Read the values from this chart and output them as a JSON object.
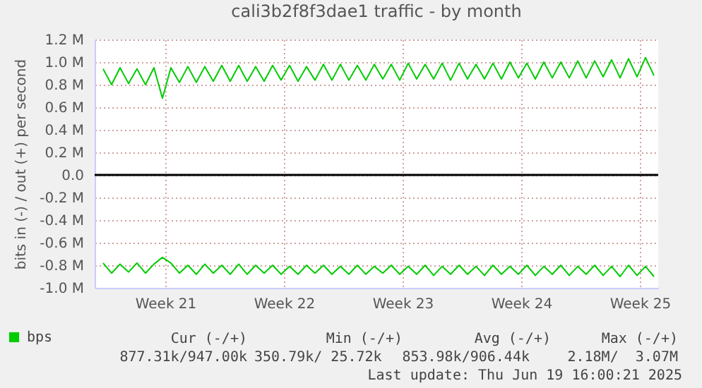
{
  "chart_data": {
    "type": "line",
    "title": "cali3b2f8f3dae1 traffic - by month",
    "ylabel": "bits in (-) / out (+) per second",
    "x": [
      "2025-05-18T20:00",
      "2025-05-19T08:00",
      "2025-05-19T20:00",
      "2025-05-20T08:00",
      "2025-05-20T20:00",
      "2025-05-21T08:00",
      "2025-05-21T20:00",
      "2025-05-22T08:00",
      "2025-05-22T20:00",
      "2025-05-23T08:00",
      "2025-05-23T20:00",
      "2025-05-24T08:00",
      "2025-05-24T20:00",
      "2025-05-25T08:00",
      "2025-05-25T20:00",
      "2025-05-26T08:00",
      "2025-05-26T20:00",
      "2025-05-27T08:00",
      "2025-05-27T20:00",
      "2025-05-28T08:00",
      "2025-05-28T20:00",
      "2025-05-29T08:00",
      "2025-05-29T20:00",
      "2025-05-30T08:00",
      "2025-05-30T20:00",
      "2025-05-31T08:00",
      "2025-05-31T20:00",
      "2025-06-01T08:00",
      "2025-06-01T20:00",
      "2025-06-02T08:00",
      "2025-06-02T20:00",
      "2025-06-03T08:00",
      "2025-06-03T20:00",
      "2025-06-04T08:00",
      "2025-06-04T20:00",
      "2025-06-05T08:00",
      "2025-06-05T20:00",
      "2025-06-06T08:00",
      "2025-06-06T20:00",
      "2025-06-07T08:00",
      "2025-06-07T20:00",
      "2025-06-08T08:00",
      "2025-06-08T20:00",
      "2025-06-09T08:00",
      "2025-06-09T20:00",
      "2025-06-10T08:00",
      "2025-06-10T20:00",
      "2025-06-11T08:00",
      "2025-06-11T20:00",
      "2025-06-12T08:00",
      "2025-06-12T20:00",
      "2025-06-13T08:00",
      "2025-06-13T20:00",
      "2025-06-14T08:00",
      "2025-06-14T20:00",
      "2025-06-15T08:00",
      "2025-06-15T20:00",
      "2025-06-16T08:00",
      "2025-06-16T20:00",
      "2025-06-17T08:00",
      "2025-06-17T20:00",
      "2025-06-18T08:00",
      "2025-06-18T20:00",
      "2025-06-19T08:00",
      "2025-06-19T20:00",
      "2025-06-20T08:00"
    ],
    "series": [
      {
        "name": "bps",
        "color": "#00cc00",
        "values": [
          0.94,
          0.8,
          0.95,
          0.81,
          0.94,
          0.8,
          0.95,
          0.68,
          0.95,
          0.82,
          0.96,
          0.82,
          0.96,
          0.83,
          0.97,
          0.83,
          0.97,
          0.83,
          0.96,
          0.83,
          0.97,
          0.84,
          0.97,
          0.83,
          0.96,
          0.84,
          0.98,
          0.84,
          0.98,
          0.84,
          0.97,
          0.84,
          0.98,
          0.85,
          0.98,
          0.84,
          0.99,
          0.85,
          0.98,
          0.85,
          0.99,
          0.84,
          0.99,
          0.85,
          0.98,
          0.85,
          0.99,
          0.85,
          1.0,
          0.86,
          0.99,
          0.85,
          1.0,
          0.86,
          1.0,
          0.86,
          1.01,
          0.86,
          1.01,
          0.87,
          1.02,
          0.86,
          1.03,
          0.87,
          1.04,
          0.88
        ]
      },
      {
        "color": "#00cc00",
        "values": [
          -0.78,
          -0.87,
          -0.79,
          -0.86,
          -0.78,
          -0.87,
          -0.79,
          -0.73,
          -0.78,
          -0.87,
          -0.8,
          -0.88,
          -0.79,
          -0.87,
          -0.8,
          -0.88,
          -0.79,
          -0.88,
          -0.8,
          -0.87,
          -0.8,
          -0.88,
          -0.81,
          -0.88,
          -0.8,
          -0.87,
          -0.8,
          -0.88,
          -0.81,
          -0.88,
          -0.8,
          -0.88,
          -0.81,
          -0.87,
          -0.8,
          -0.88,
          -0.81,
          -0.88,
          -0.8,
          -0.89,
          -0.81,
          -0.88,
          -0.8,
          -0.88,
          -0.81,
          -0.89,
          -0.8,
          -0.88,
          -0.81,
          -0.88,
          -0.8,
          -0.89,
          -0.81,
          -0.88,
          -0.8,
          -0.89,
          -0.81,
          -0.88,
          -0.8,
          -0.89,
          -0.81,
          -0.9,
          -0.8,
          -0.89,
          -0.81,
          -0.9
        ]
      }
    ],
    "xlim": [
      "2025-05-18T08:00",
      "2025-06-20T14:00"
    ],
    "xticks": [
      {
        "value": "2025-05-22T12:00",
        "label": "Week 21"
      },
      {
        "value": "2025-05-29T12:00",
        "label": "Week 22"
      },
      {
        "value": "2025-06-05T12:00",
        "label": "Week 23"
      },
      {
        "value": "2025-06-12T12:00",
        "label": "Week 24"
      },
      {
        "value": "2025-06-19T12:00",
        "label": "Week 25"
      }
    ],
    "ylim": [
      -1.0,
      1.2
    ],
    "yticks": [
      {
        "value": -1.0,
        "label": "-1.0 M"
      },
      {
        "value": -0.8,
        "label": "-0.8 M"
      },
      {
        "value": -0.6,
        "label": "-0.6 M"
      },
      {
        "value": -0.4,
        "label": "-0.4 M"
      },
      {
        "value": -0.2,
        "label": "-0.2 M"
      },
      {
        "value": 0,
        "label": "0.0"
      },
      {
        "value": 0.2,
        "label": "0.2 M"
      },
      {
        "value": 0.4,
        "label": "0.4 M"
      },
      {
        "value": 0.6,
        "label": "0.6 M"
      },
      {
        "value": 0.8,
        "label": "0.8 M"
      },
      {
        "value": 1.0,
        "label": "1.0 M"
      },
      {
        "value": 1.2,
        "label": "1.2 M"
      }
    ],
    "grid": true,
    "legend": "bottom left",
    "ref_lines": [
      {
        "axis": "y",
        "value": 0,
        "color": "#000000"
      }
    ],
    "annotations": [
      "Cur (-/+)",
      "Min (-/+)",
      "Avg (-/+)",
      "Max (-/+)",
      "877.31k/947.00k",
      "350.79k/ 25.72k",
      "853.98k/906.44k",
      "2.18M/  3.07M",
      "Last update: Thu Jun 19 16:00:21 2025"
    ]
  }
}
